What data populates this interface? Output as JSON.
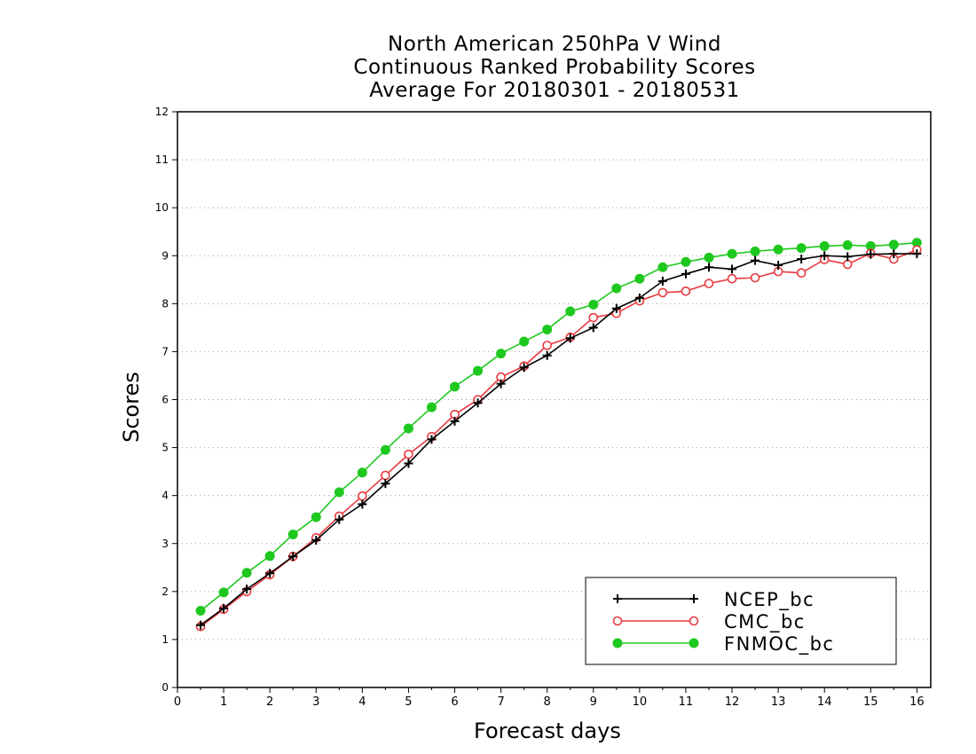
{
  "chart_data": {
    "type": "line",
    "title": [
      "North American 250hPa V Wind",
      "Continuous Ranked Probability Scores",
      "Average For 20180301 - 20180531"
    ],
    "xlabel": "Forecast days",
    "ylabel": "Scores",
    "xlim": [
      0,
      16.3
    ],
    "ylim": [
      0,
      12
    ],
    "xticks": [
      0,
      1,
      2,
      3,
      4,
      5,
      6,
      7,
      8,
      9,
      10,
      11,
      12,
      13,
      14,
      15,
      16
    ],
    "xtick_labels": [
      "0",
      "1",
      "2",
      "3",
      "4",
      "5",
      "6",
      "7",
      "8",
      "9",
      "10",
      "11",
      "12",
      "13",
      "14",
      "15",
      "16"
    ],
    "yticks": [
      0,
      1,
      2,
      3,
      4,
      5,
      6,
      7,
      8,
      9,
      10,
      11,
      12
    ],
    "ytick_labels": [
      "0",
      "1",
      "2",
      "3",
      "4",
      "5",
      "6",
      "7",
      "8",
      "9",
      "10",
      "11",
      "12"
    ],
    "grid": "horizontal dotted",
    "legend_position": "bottom-right",
    "x": [
      0.5,
      1,
      1.5,
      2,
      2.5,
      3,
      3.5,
      4,
      4.5,
      5,
      5.5,
      6,
      6.5,
      7,
      7.5,
      8,
      8.5,
      9,
      9.5,
      10,
      10.5,
      11,
      11.5,
      12,
      12.5,
      13,
      13.5,
      14,
      14.5,
      15,
      15.5,
      16
    ],
    "series": [
      {
        "name": "NCEP_bc",
        "color": "#000000",
        "marker": "plus",
        "values": [
          1.3,
          1.65,
          2.05,
          2.38,
          2.73,
          3.07,
          3.5,
          3.82,
          4.25,
          4.67,
          5.17,
          5.55,
          5.93,
          6.33,
          6.67,
          6.92,
          7.28,
          7.5,
          7.9,
          8.12,
          8.47,
          8.62,
          8.76,
          8.72,
          8.9,
          8.8,
          8.93,
          9.0,
          8.98,
          9.03,
          9.04,
          9.04
        ]
      },
      {
        "name": "CMC_bc",
        "color": "#e8393e",
        "marker": "open-circle",
        "values": [
          1.27,
          1.63,
          2.0,
          2.35,
          2.73,
          3.12,
          3.57,
          3.99,
          4.42,
          4.86,
          5.23,
          5.69,
          6.0,
          6.47,
          6.7,
          7.13,
          7.3,
          7.71,
          7.8,
          8.06,
          8.23,
          8.26,
          8.42,
          8.52,
          8.54,
          8.67,
          8.64,
          8.92,
          8.82,
          9.05,
          8.93,
          9.12
        ]
      },
      {
        "name": "FNMOC_bc",
        "color": "#1ec81e",
        "marker": "filled-circle",
        "values": [
          1.6,
          1.98,
          2.39,
          2.74,
          3.19,
          3.55,
          4.07,
          4.48,
          4.95,
          5.4,
          5.84,
          6.27,
          6.6,
          6.96,
          7.21,
          7.46,
          7.84,
          7.98,
          8.32,
          8.52,
          8.76,
          8.87,
          8.96,
          9.04,
          9.09,
          9.13,
          9.16,
          9.2,
          9.22,
          9.2,
          9.23,
          9.27
        ]
      }
    ]
  }
}
